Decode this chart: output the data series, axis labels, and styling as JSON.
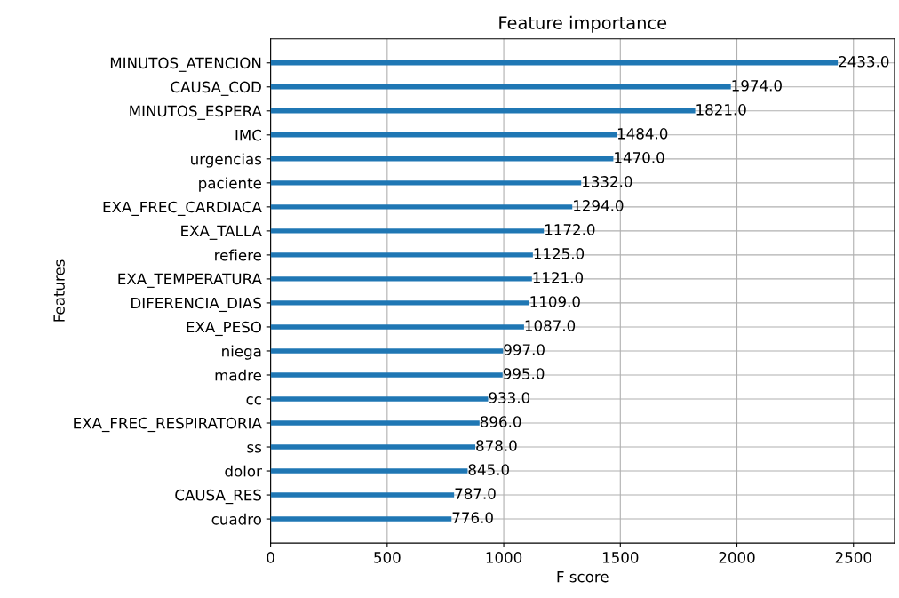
{
  "chart_data": {
    "type": "bar",
    "orientation": "horizontal",
    "title": "Feature importance",
    "xlabel": "F score",
    "ylabel": "Features",
    "categories": [
      "MINUTOS_ATENCION",
      "CAUSA_COD",
      "MINUTOS_ESPERA",
      "IMC",
      "urgencias",
      "paciente",
      "EXA_FREC_CARDIACA",
      "EXA_TALLA",
      "refiere",
      "EXA_TEMPERATURA",
      "DIFERENCIA_DIAS",
      "EXA_PESO",
      "niega",
      "madre",
      "cc",
      "EXA_FREC_RESPIRATORIA",
      "ss",
      "dolor",
      "CAUSA_RES",
      "cuadro"
    ],
    "values": [
      2433,
      1974,
      1821,
      1484,
      1470,
      1332,
      1294,
      1172,
      1125,
      1121,
      1109,
      1087,
      997,
      995,
      933,
      896,
      878,
      845,
      787,
      776
    ],
    "value_labels": [
      "2433.0",
      "1974.0",
      "1821.0",
      "1484.0",
      "1470.0",
      "1332.0",
      "1294.0",
      "1172.0",
      "1125.0",
      "1121.0",
      "1109.0",
      "1087.0",
      "997.0",
      "995.0",
      "933.0",
      "896.0",
      "878.0",
      "845.0",
      "787.0",
      "776.0"
    ],
    "color": "#1f77b4",
    "xlim": [
      0,
      2676
    ],
    "xticks": [
      0,
      500,
      1000,
      1500,
      2000,
      2500
    ],
    "grid": true
  }
}
